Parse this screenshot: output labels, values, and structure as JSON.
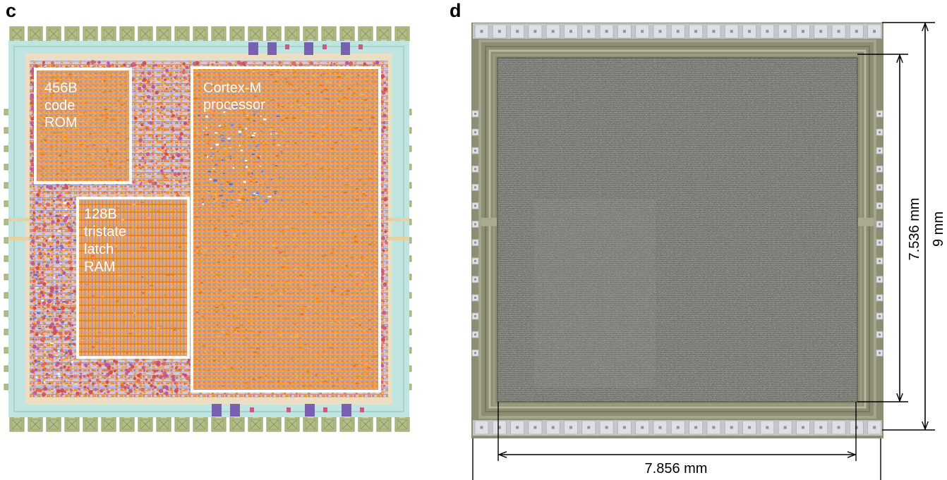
{
  "figure": {
    "panel_c": {
      "label": "c",
      "blocks": {
        "rom": {
          "lines": [
            "456B",
            "code",
            "ROM"
          ]
        },
        "ram": {
          "lines": [
            "128B",
            "tristate",
            "latch",
            "RAM"
          ]
        },
        "processor": {
          "lines": [
            "Cortex-M",
            "processor"
          ]
        }
      }
    },
    "panel_d": {
      "label": "d",
      "dimensions": {
        "core_width": "7.856 mm",
        "core_height": "7.536 mm",
        "die_height": "9 mm"
      }
    }
  },
  "colors": {
    "pad": "#b3bd86",
    "pad_ring": "#bfe4e1",
    "block_outline": "#ffffff",
    "die": "#8c8d73",
    "die_pad": "#dde0e4",
    "io_cell": "#7a60b0",
    "dimension_line": "#000000"
  }
}
